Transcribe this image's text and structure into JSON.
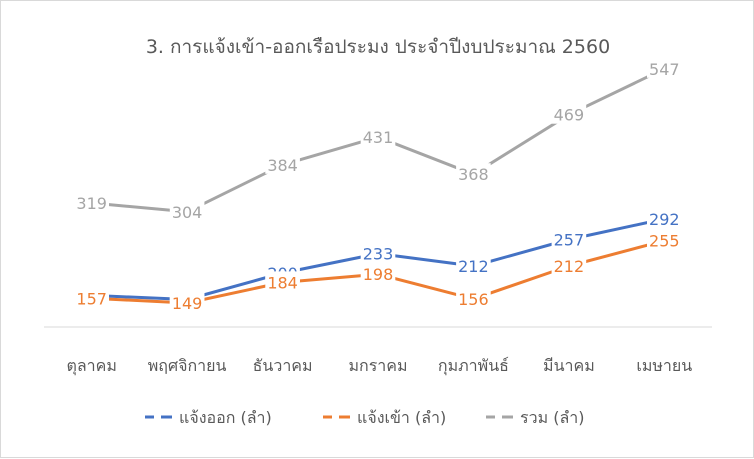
{
  "chart_data": {
    "type": "line",
    "title": "3. การแจ้งเข้า-ออกเรือประมง ประจำปีงบประมาณ  2560",
    "categories": [
      "ตุลาคม",
      "พฤศจิกายน",
      "ธันวาคม",
      "มกราคม",
      "กุมภาพันธ์",
      "มีนาคม",
      "เมษายน"
    ],
    "series": [
      {
        "name": "แจ้งออก (ลำ)",
        "values": [
          162,
          155,
          200,
          233,
          212,
          257,
          292
        ],
        "color": "#4472c4"
      },
      {
        "name": "แจ้งเข้า (ลำ)",
        "values": [
          157,
          149,
          184,
          198,
          156,
          212,
          255
        ],
        "color": "#ed7d31"
      },
      {
        "name": "รวม (ลำ)",
        "values": [
          319,
          304,
          384,
          431,
          368,
          469,
          547
        ],
        "color": "#a5a5a5"
      }
    ],
    "data_labels": true,
    "legend_position": "bottom",
    "grid": false,
    "xlabel": "",
    "ylabel": "",
    "axis_line_color": "#d9d9d9"
  }
}
